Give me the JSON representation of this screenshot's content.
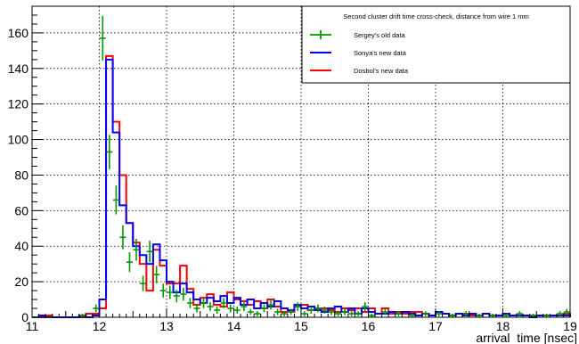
{
  "chart_data": {
    "type": "histogram",
    "title": "",
    "xlabel": "arrival_time [nsec]",
    "ylabel": "",
    "xlim": [
      11,
      19
    ],
    "ylim": [
      0,
      175
    ],
    "x_ticks": [
      11,
      12,
      13,
      14,
      15,
      16,
      17,
      18,
      19
    ],
    "y_ticks": [
      0,
      20,
      40,
      60,
      80,
      100,
      120,
      140,
      160
    ],
    "grid": true,
    "legend": {
      "position": "top-right",
      "title": "Second cluster drift time cross-check, distance from wire 1 mm",
      "entries": [
        {
          "name": "Sergey's old data",
          "color": "#009900",
          "style": "points-error"
        },
        {
          "name": "Sonya's new data",
          "color": "#0000ff",
          "style": "line"
        },
        {
          "name": "Dosbol's new data",
          "color": "#ff0000",
          "style": "line"
        }
      ]
    },
    "series": [
      {
        "name": "Sergey's old data",
        "color": "#009900",
        "style": "points-error",
        "x": [
          11.05,
          11.25,
          11.75,
          11.95,
          12.05,
          12.15,
          12.25,
          12.35,
          12.45,
          12.55,
          12.65,
          12.75,
          12.85,
          12.95,
          13.05,
          13.15,
          13.25,
          13.35,
          13.45,
          13.55,
          13.65,
          13.75,
          13.85,
          13.95,
          14.05,
          14.15,
          14.25,
          14.35,
          14.45,
          14.55,
          14.65,
          14.75,
          14.85,
          14.95,
          15.05,
          15.15,
          15.25,
          15.35,
          15.45,
          15.55,
          15.65,
          15.75,
          15.85,
          15.95,
          16.05,
          16.25,
          16.45,
          16.65,
          16.85,
          17.05,
          17.25,
          17.45,
          17.65,
          17.85,
          18.05,
          18.25,
          18.45,
          18.65,
          18.85,
          18.95
        ],
        "y": [
          0,
          0,
          1,
          5,
          157,
          93,
          66,
          45,
          31,
          38,
          19,
          37,
          24,
          15,
          14,
          12,
          13,
          8,
          5,
          8,
          6,
          4,
          8,
          5,
          4,
          6,
          3,
          2,
          5,
          7,
          3,
          2,
          3,
          6,
          2,
          4,
          5,
          4,
          3,
          2,
          3,
          2,
          2,
          6,
          1,
          3,
          2,
          1,
          2,
          2,
          1,
          2,
          1,
          1,
          1,
          2,
          1,
          1,
          2,
          3
        ]
      },
      {
        "name": "Sonya's new data",
        "color": "#0000ff",
        "style": "line",
        "bin_edges": [
          11,
          11.1,
          11.2,
          11.3,
          11.4,
          11.5,
          11.6,
          11.7,
          11.8,
          11.9,
          12.0,
          12.1,
          12.2,
          12.3,
          12.4,
          12.5,
          12.6,
          12.7,
          12.8,
          12.9,
          13.0,
          13.1,
          13.2,
          13.3,
          13.4,
          13.5,
          13.6,
          13.7,
          13.8,
          13.9,
          14.0,
          14.1,
          14.2,
          14.3,
          14.4,
          14.5,
          14.6,
          14.7,
          14.8,
          14.9,
          15.0,
          15.1,
          15.2,
          15.3,
          15.4,
          15.5,
          15.6,
          15.7,
          15.8,
          15.9,
          16.0,
          16.1,
          16.2,
          16.3,
          16.4,
          16.5,
          16.6,
          16.7,
          16.8,
          16.9,
          17.0,
          17.1,
          17.2,
          17.3,
          17.4,
          17.5,
          17.6,
          17.7,
          17.8,
          17.9,
          18.0,
          18.1,
          18.2,
          18.3,
          18.4,
          18.5,
          18.6,
          18.7,
          18.8,
          18.9,
          19.0
        ],
        "counts": [
          0,
          1,
          0,
          0,
          0,
          0,
          0,
          1,
          0,
          1,
          10,
          145,
          104,
          63,
          53,
          40,
          35,
          30,
          41,
          32,
          20,
          14,
          19,
          14,
          10,
          8,
          11,
          9,
          12,
          8,
          11,
          7,
          10,
          5,
          8,
          6,
          9,
          5,
          4,
          7,
          5,
          6,
          4,
          3,
          5,
          6,
          3,
          5,
          2,
          5,
          3,
          2,
          2,
          3,
          2,
          3,
          2,
          1,
          2,
          1,
          3,
          2,
          1,
          2,
          1,
          2,
          1,
          2,
          1,
          1,
          2,
          1,
          1,
          1,
          0,
          1,
          1,
          1,
          1,
          1
        ]
      },
      {
        "name": "Dosbol's new data",
        "color": "#ff0000",
        "style": "line",
        "bin_edges": [
          11,
          11.1,
          11.2,
          11.3,
          11.4,
          11.5,
          11.6,
          11.7,
          11.8,
          11.9,
          12.0,
          12.1,
          12.2,
          12.3,
          12.4,
          12.5,
          12.6,
          12.7,
          12.8,
          12.9,
          13.0,
          13.1,
          13.2,
          13.3,
          13.4,
          13.5,
          13.6,
          13.7,
          13.8,
          13.9,
          14.0,
          14.1,
          14.2,
          14.3,
          14.4,
          14.5,
          14.6,
          14.7,
          14.8,
          14.9,
          15.0,
          15.1,
          15.2,
          15.3,
          15.4,
          15.5,
          15.6,
          15.7,
          15.8,
          15.9,
          16.0,
          16.1,
          16.2,
          16.3,
          16.4,
          16.5,
          16.6,
          16.7,
          16.8,
          16.9,
          17.0,
          17.1,
          17.2,
          17.3,
          17.4,
          17.5,
          17.6,
          17.7,
          17.8,
          17.9,
          18.0,
          18.1,
          18.2,
          18.3,
          18.4,
          18.5,
          18.6,
          18.7,
          18.8,
          18.9,
          19.0
        ],
        "counts": [
          0,
          0,
          1,
          0,
          0,
          0,
          0,
          0,
          2,
          2,
          5,
          147,
          110,
          80,
          53,
          42,
          30,
          15,
          38,
          29,
          19,
          19,
          29,
          16,
          7,
          11,
          13,
          7,
          6,
          14,
          10,
          9,
          7,
          9,
          5,
          10,
          6,
          3,
          3,
          6,
          7,
          4,
          5,
          5,
          4,
          3,
          5,
          4,
          5,
          3,
          5,
          2,
          5,
          2,
          3,
          2,
          3,
          3,
          2,
          1,
          3,
          2,
          1,
          2,
          2,
          1,
          1,
          2,
          1,
          1,
          2,
          1,
          1,
          1,
          1,
          1,
          1,
          1,
          1,
          2
        ]
      }
    ]
  }
}
